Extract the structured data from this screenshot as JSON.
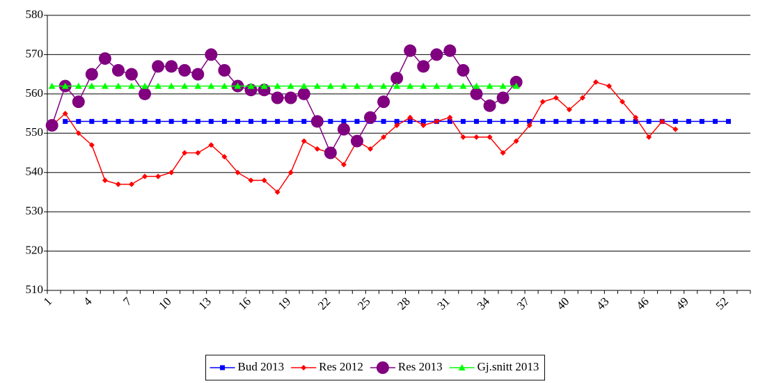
{
  "chart_data": {
    "type": "line",
    "categories": [
      1,
      null,
      null,
      4,
      null,
      null,
      7,
      null,
      null,
      10,
      null,
      null,
      13,
      null,
      null,
      16,
      null,
      null,
      19,
      null,
      null,
      22,
      null,
      null,
      25,
      null,
      null,
      28,
      null,
      null,
      31,
      null,
      null,
      34,
      null,
      null,
      37,
      null,
      null,
      40,
      null,
      null,
      43,
      null,
      null,
      46,
      null,
      null,
      49,
      null,
      null,
      52,
      null
    ],
    "series": [
      {
        "name": "Bud 2013",
        "color": "#0000FF",
        "marker": "square",
        "values": [
          null,
          553,
          553,
          553,
          553,
          553,
          553,
          553,
          553,
          553,
          553,
          553,
          553,
          553,
          553,
          553,
          553,
          553,
          553,
          553,
          553,
          553,
          553,
          553,
          553,
          553,
          553,
          553,
          553,
          553,
          553,
          553,
          553,
          553,
          553,
          553,
          553,
          553,
          553,
          553,
          553,
          553,
          553,
          553,
          553,
          553,
          553,
          553,
          553,
          553,
          553,
          553,
          null
        ]
      },
      {
        "name": "Res 2012",
        "color": "#FF0000",
        "marker": "diamond",
        "values": [
          552,
          555,
          550,
          547,
          538,
          537,
          537,
          539,
          539,
          540,
          545,
          545,
          547,
          544,
          540,
          538,
          538,
          535,
          540,
          548,
          546,
          545,
          542,
          548,
          546,
          549,
          552,
          554,
          552,
          553,
          554,
          549,
          549,
          549,
          545,
          548,
          552,
          558,
          559,
          556,
          559,
          563,
          562,
          558,
          554,
          549,
          553,
          551,
          null,
          null,
          null,
          null,
          null
        ]
      },
      {
        "name": "Res 2013",
        "color": "#800080",
        "marker": "circle",
        "values": [
          552,
          562,
          558,
          565,
          569,
          566,
          565,
          560,
          567,
          567,
          566,
          565,
          570,
          566,
          562,
          561,
          561,
          559,
          559,
          560,
          553,
          545,
          551,
          548,
          554,
          558,
          564,
          571,
          567,
          570,
          571,
          566,
          560,
          557,
          559,
          563,
          null,
          null,
          null,
          null,
          null,
          null,
          null,
          null,
          null,
          null,
          null,
          null,
          null,
          null,
          null,
          null,
          null
        ]
      },
      {
        "name": "Gj.snitt 2013",
        "color": "#00FF00",
        "marker": "triangle",
        "values": [
          562,
          562,
          562,
          562,
          562,
          562,
          562,
          562,
          562,
          562,
          562,
          562,
          562,
          562,
          562,
          562,
          562,
          562,
          562,
          562,
          562,
          562,
          562,
          562,
          562,
          562,
          562,
          562,
          562,
          562,
          562,
          562,
          562,
          562,
          562,
          562,
          null,
          null,
          null,
          null,
          null,
          null,
          null,
          null,
          null,
          null,
          null,
          null,
          null,
          null,
          null,
          null,
          null
        ]
      }
    ],
    "ylim": [
      510,
      580
    ],
    "yticks": [
      510,
      520,
      530,
      540,
      550,
      560,
      570,
      580
    ],
    "grid": true,
    "legend": "bottom"
  }
}
